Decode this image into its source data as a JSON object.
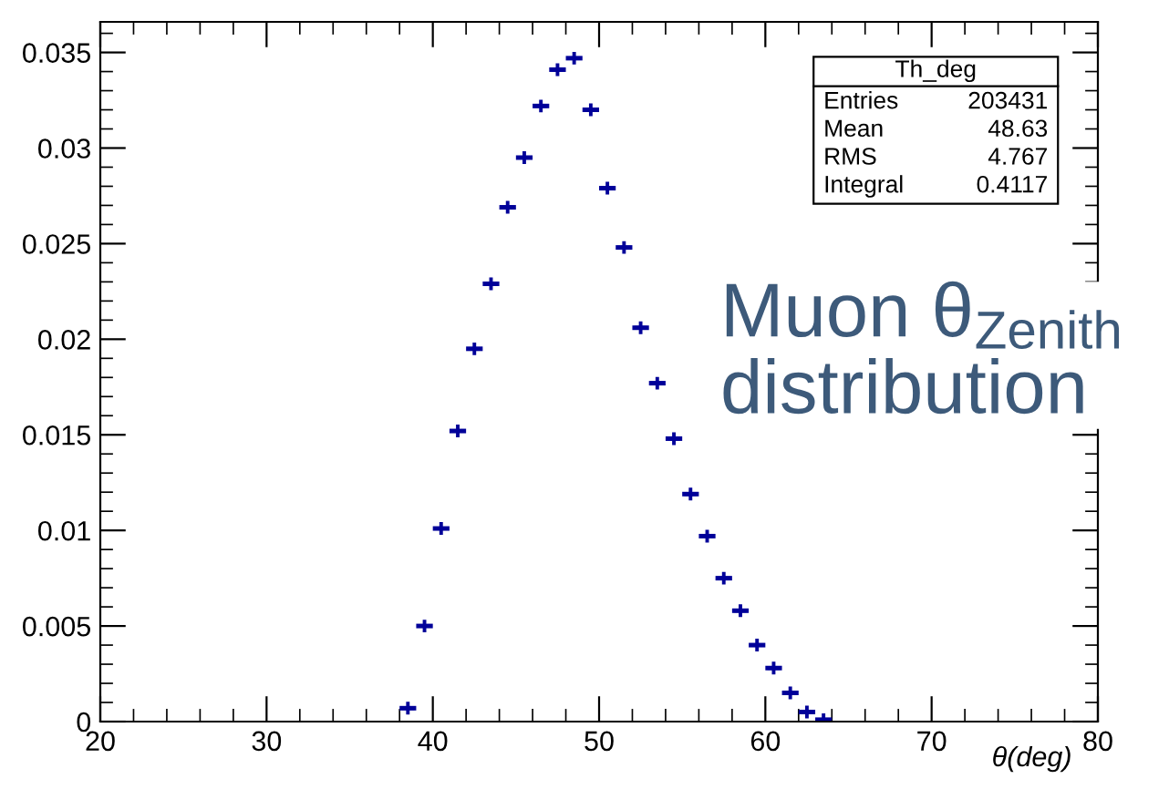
{
  "chart_data": {
    "type": "scatter",
    "xlabel": "θ(deg)",
    "x": [
      38.5,
      39.5,
      40.5,
      41.5,
      42.5,
      43.5,
      44.5,
      45.5,
      46.5,
      47.5,
      48.5,
      49.5,
      50.5,
      51.5,
      52.5,
      53.5,
      54.5,
      55.5,
      56.5,
      57.5,
      58.5,
      59.5,
      60.5,
      61.5,
      62.5,
      63.5
    ],
    "values": [
      0.0007,
      0.005,
      0.0101,
      0.0152,
      0.0195,
      0.0229,
      0.0269,
      0.0295,
      0.0322,
      0.0341,
      0.0347,
      0.032,
      0.0279,
      0.0248,
      0.0206,
      0.0177,
      0.0148,
      0.0119,
      0.0097,
      0.0075,
      0.0058,
      0.004,
      0.0028,
      0.0015,
      0.0005,
      0.0001
    ],
    "xerrors": [
      0.5,
      0.5,
      0.5,
      0.5,
      0.5,
      0.5,
      0.5,
      0.5,
      0.5,
      0.5,
      0.5,
      0.5,
      0.5,
      0.5,
      0.5,
      0.5,
      0.5,
      0.5,
      0.5,
      0.5,
      0.5,
      0.5,
      0.5,
      0.5,
      0.5,
      0.5
    ],
    "color": "#000099",
    "marker": "cross",
    "xlim": [
      20,
      80
    ],
    "xticks": [
      20,
      30,
      40,
      50,
      60,
      70,
      80
    ],
    "ylim": [
      0,
      0.0366
    ],
    "yticks": [
      0,
      0.005,
      0.01,
      0.015,
      0.02,
      0.025,
      0.03,
      0.035
    ],
    "grid": false,
    "legend": false,
    "annotations": [
      "Th_deg",
      "Entries",
      "203431",
      "Mean",
      "48.63",
      "RMS",
      "4.767",
      "Integral",
      "0.4117",
      "Muon θ$_{Zenith}$\ndistribution"
    ]
  }
}
